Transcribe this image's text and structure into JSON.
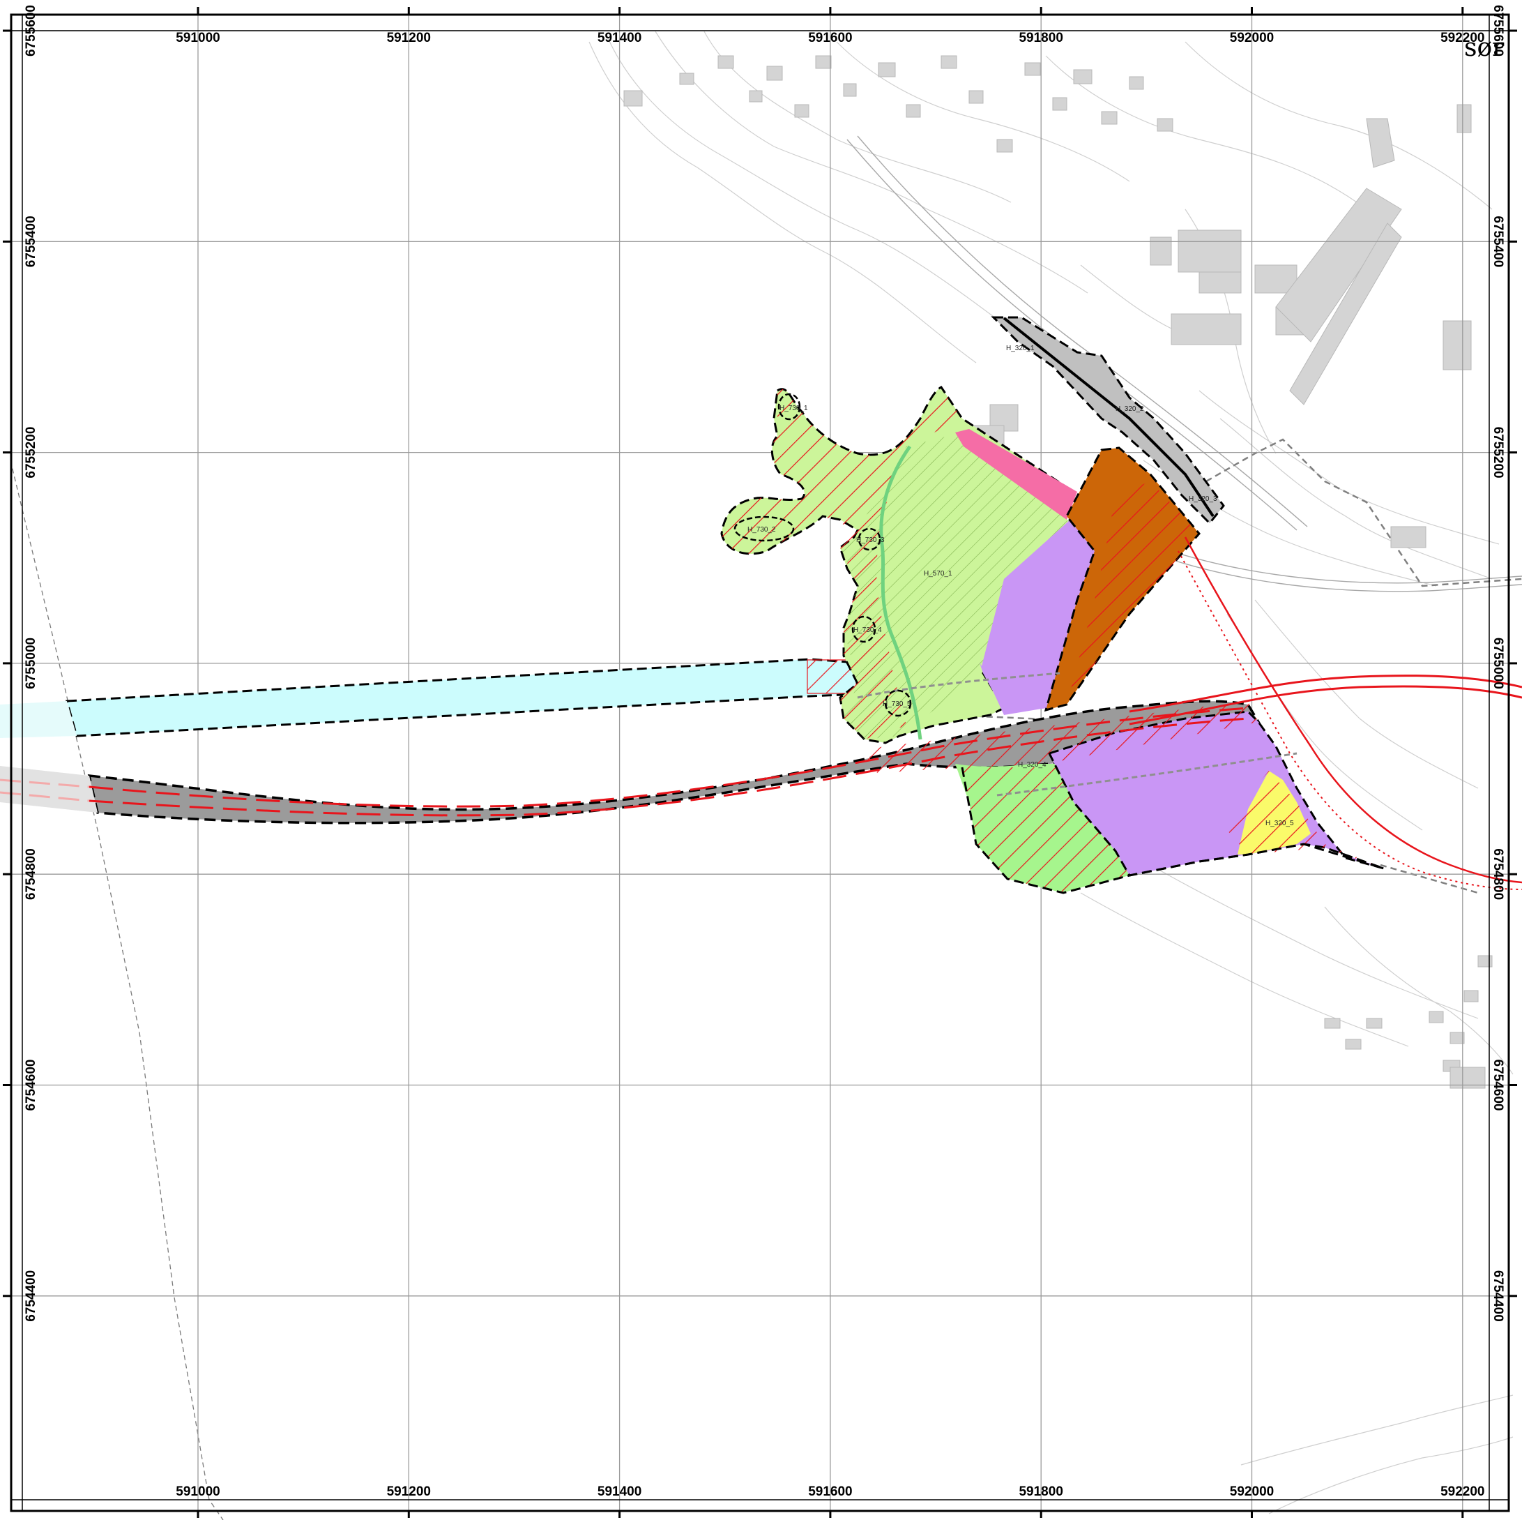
{
  "map": {
    "corner_text": "sør",
    "colors": {
      "grid": "#9a9a9a",
      "frame": "#000000",
      "basemap": "#c8c8c8",
      "building": "#d4d4d4",
      "light_green": "#ccf59a",
      "green": "#a6f58d",
      "purple": "#c996f5",
      "orange": "#cc6608",
      "pink": "#f56da6",
      "cyan": "#ccfcfd",
      "gray_road": "#9b9b9b",
      "yellow": "#fafa6a",
      "red_hatch": "#e8151c",
      "stream": "#6fd27f"
    },
    "x_ticks": [
      "591000",
      "591200",
      "591400",
      "591600",
      "591800",
      "592000",
      "592200"
    ],
    "y_ticks": [
      "6755600",
      "6755400",
      "6755200",
      "6755000",
      "6754800",
      "6754600",
      "6754400"
    ],
    "zones": [
      {
        "id": "H_570_1"
      },
      {
        "id": "H_730_2"
      },
      {
        "id": "H_730_3"
      },
      {
        "id": "H_730_4"
      },
      {
        "id": "H_730_5"
      },
      {
        "id": "H_730_1"
      },
      {
        "id": "H_320_1"
      },
      {
        "id": "H_320_2"
      },
      {
        "id": "H_320_3"
      },
      {
        "id": "H_320_4"
      },
      {
        "id": "H_320_5"
      }
    ]
  }
}
